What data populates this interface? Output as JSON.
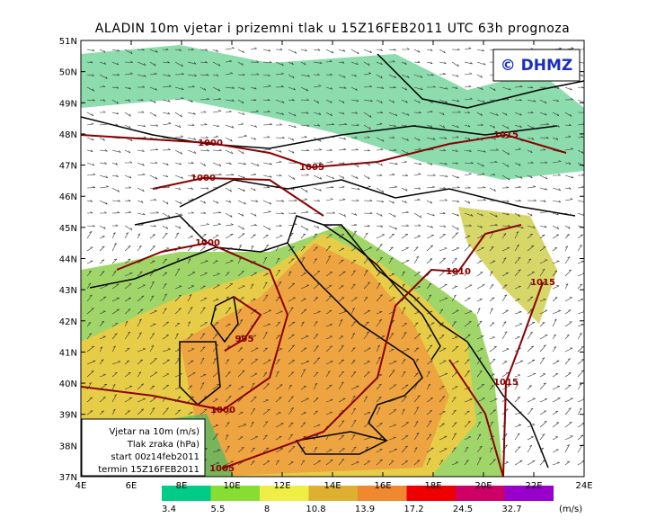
{
  "title": "ALADIN 10m vjetar i prizemni tlak u 15Z16FEB2011 UTC 63h prognoza",
  "logo": "© DHMZ",
  "lat_labels": [
    "51N",
    "50N",
    "49N",
    "48N",
    "47N",
    "46N",
    "45N",
    "44N",
    "43N",
    "42N",
    "41N",
    "40N",
    "39N",
    "38N",
    "37N"
  ],
  "lon_labels": [
    "4E",
    "6E",
    "8E",
    "10E",
    "12E",
    "14E",
    "16E",
    "18E",
    "20E",
    "22E",
    "24E"
  ],
  "isobars": [
    {
      "label": "1000"
    },
    {
      "label": "1000"
    },
    {
      "label": "1005"
    },
    {
      "label": "1015"
    },
    {
      "label": "1000"
    },
    {
      "label": "1010"
    },
    {
      "label": "1015"
    },
    {
      "label": "995"
    },
    {
      "label": "1015"
    },
    {
      "label": "1000"
    },
    {
      "label": "1005"
    }
  ],
  "legend_box": [
    "Vjetar na 10m (m/s)",
    "Tlak zraka (hPa)",
    "start 00z14feb2011",
    "termin 15Z16FEB2011"
  ],
  "colorbar": {
    "colors": [
      "#00cc88",
      "#88dd33",
      "#eeee44",
      "#ddb030",
      "#f08830",
      "#ee0000",
      "#cc0066",
      "#9900cc"
    ],
    "labels": [
      3.4,
      5.5,
      8,
      10.8,
      13.9,
      17.2,
      24.5,
      32.7
    ],
    "unit": "(m/s)"
  }
}
